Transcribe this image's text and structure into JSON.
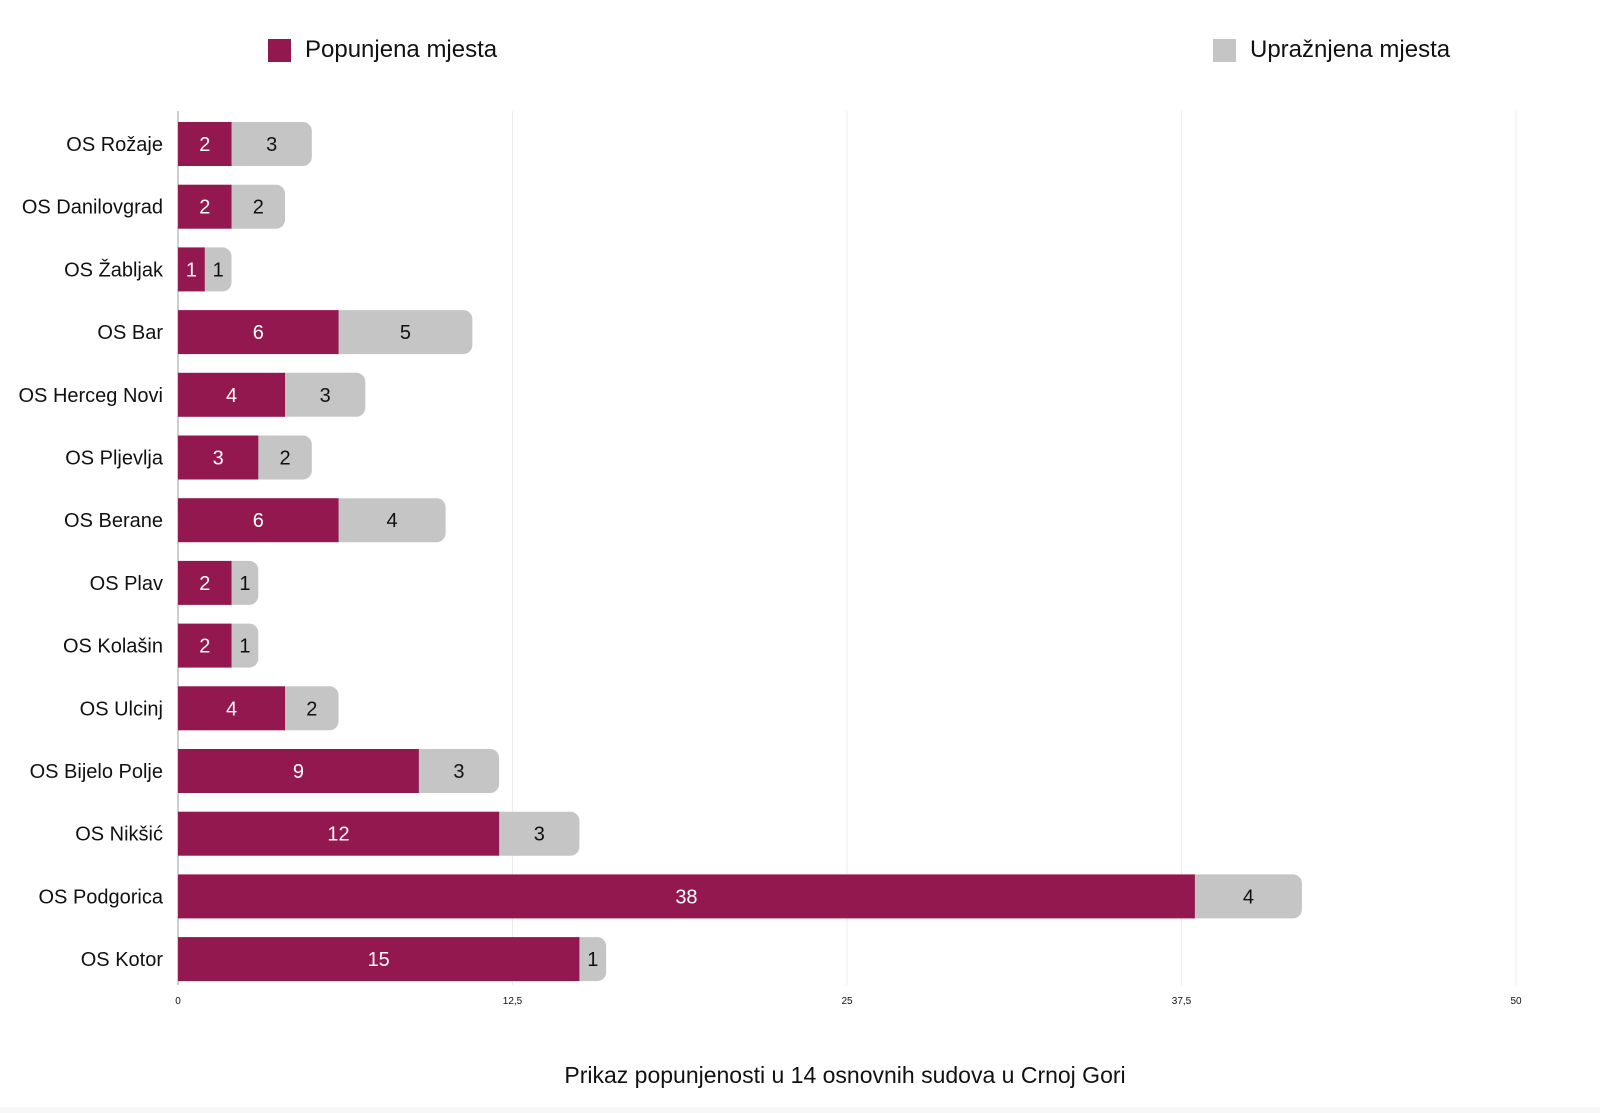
{
  "colors": {
    "filled": "#93184f",
    "vacant": "#c5c5c5",
    "grid": "#ececec",
    "axis": "#bdbdbd",
    "text": "#111111"
  },
  "chart_data": {
    "type": "bar",
    "orientation": "horizontal",
    "stacked": true,
    "title": "Prikaz popunjenosti u 14 osnovnih sudova u Crnoj Gori",
    "xlabel": "",
    "ylabel": "",
    "xlim": [
      0,
      50
    ],
    "x_ticks": [
      0,
      12.5,
      25,
      37.5,
      50
    ],
    "x_tick_labels": [
      "0",
      "12,5",
      "25",
      "37,5",
      "50"
    ],
    "grid": true,
    "legend_position": "top",
    "categories": [
      "OS Rožaje",
      "OS Danilovgrad",
      "OS Žabljak",
      "OS Bar",
      "OS Herceg Novi",
      "OS Pljevlja",
      "OS Berane",
      "OS Plav",
      "OS Kolašin",
      "OS Ulcinj",
      "OS Bijelo Polje",
      "OS Nikšić",
      "OS Podgorica",
      "OS Kotor"
    ],
    "series": [
      {
        "name": "Popunjena mjesta",
        "color": "#93184f",
        "values": [
          2,
          2,
          1,
          6,
          4,
          3,
          6,
          2,
          2,
          4,
          9,
          12,
          38,
          15
        ]
      },
      {
        "name": "Upražnjena mjesta",
        "color": "#c5c5c5",
        "values": [
          3,
          2,
          1,
          5,
          3,
          2,
          4,
          1,
          1,
          2,
          3,
          3,
          4,
          1
        ]
      }
    ]
  }
}
